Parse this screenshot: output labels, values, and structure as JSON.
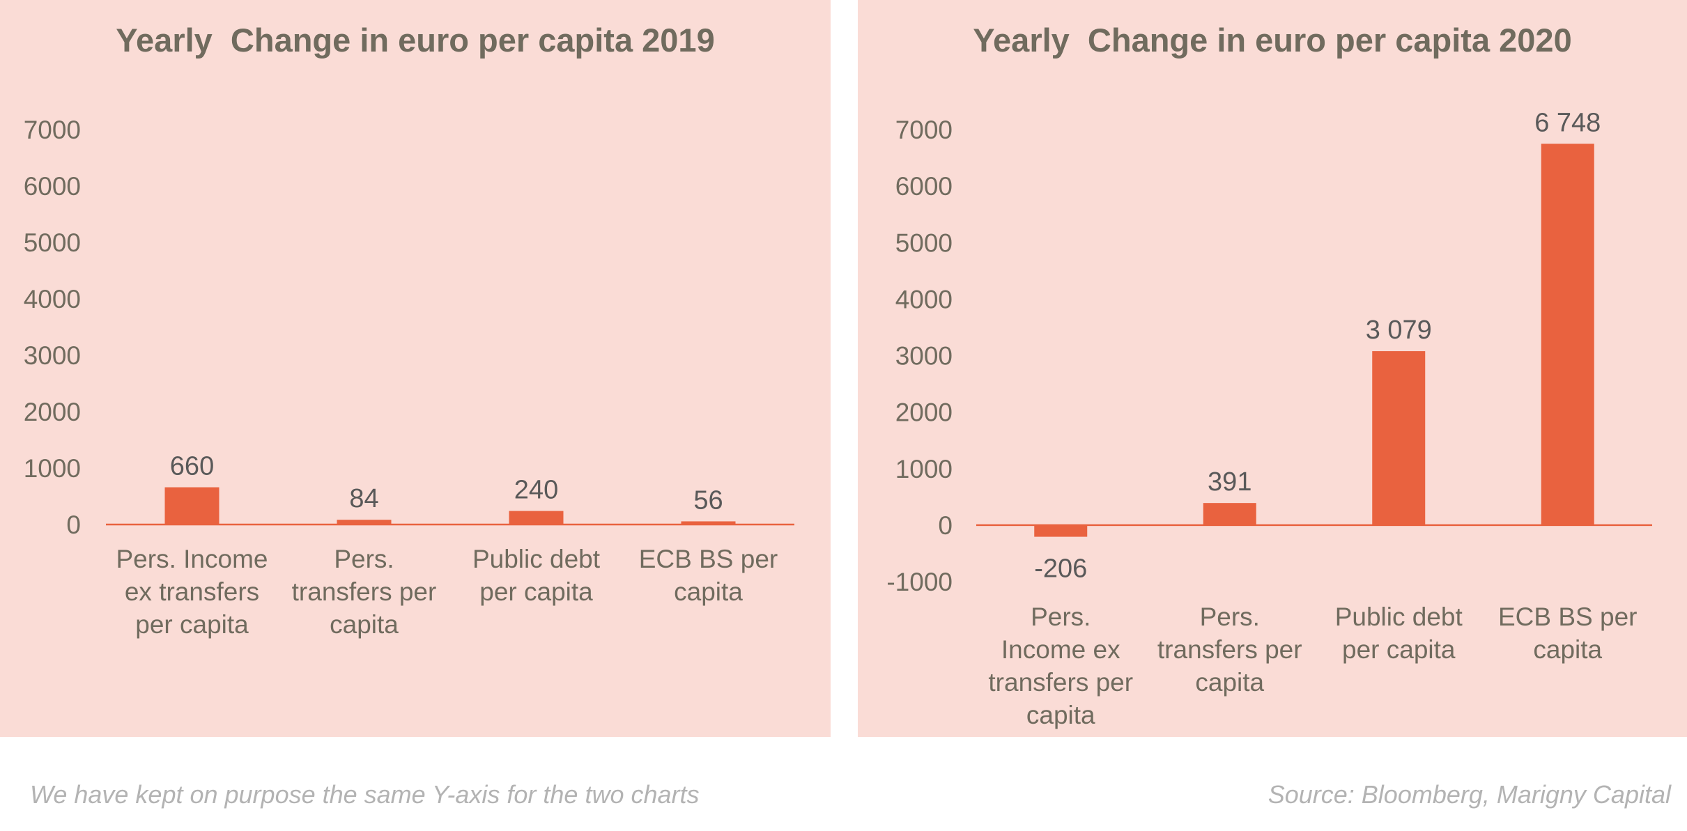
{
  "chart_data": [
    {
      "type": "bar",
      "title": "Yearly  Change in euro per capita 2019",
      "categories": [
        [
          "Pers. Income",
          "ex transfers",
          "per capita"
        ],
        [
          "Pers.",
          "transfers per",
          "capita"
        ],
        [
          "Public debt",
          "per capita"
        ],
        [
          "ECB BS per",
          "capita"
        ]
      ],
      "values": [
        660,
        84,
        240,
        56
      ],
      "value_labels": [
        "660",
        "84",
        "240",
        "56"
      ],
      "yticks": [
        0,
        1000,
        2000,
        3000,
        4000,
        5000,
        6000,
        7000
      ],
      "ylim": [
        0,
        7000
      ],
      "grid": false,
      "bar_color": "#e9623f"
    },
    {
      "type": "bar",
      "title": "Yearly  Change in euro per capita 2020",
      "categories": [
        [
          "Pers.",
          "Income ex",
          "transfers per",
          "capita"
        ],
        [
          "Pers.",
          "transfers per",
          "capita"
        ],
        [
          "Public debt",
          "per capita"
        ],
        [
          "ECB BS per",
          "capita"
        ]
      ],
      "values": [
        -206,
        391,
        3079,
        6748
      ],
      "value_labels": [
        "-206",
        "391",
        "3 079",
        "6 748"
      ],
      "yticks": [
        -1000,
        0,
        1000,
        2000,
        3000,
        4000,
        5000,
        6000,
        7000
      ],
      "ylim": [
        -1000,
        7000
      ],
      "grid": false,
      "bar_color": "#e9623f"
    }
  ],
  "footer": {
    "note": "We have kept on purpose the same Y-axis for the two charts",
    "source": "Source: Bloomberg, Marigny Capital"
  },
  "colors": {
    "panel_background": "#fadcd6",
    "bar": "#e9623f",
    "axis": "#e9623f",
    "title_text": "#706b5e",
    "tick_text": "#706b5e",
    "label_text": "#595959",
    "footnote_text": "#b3b3b3"
  }
}
